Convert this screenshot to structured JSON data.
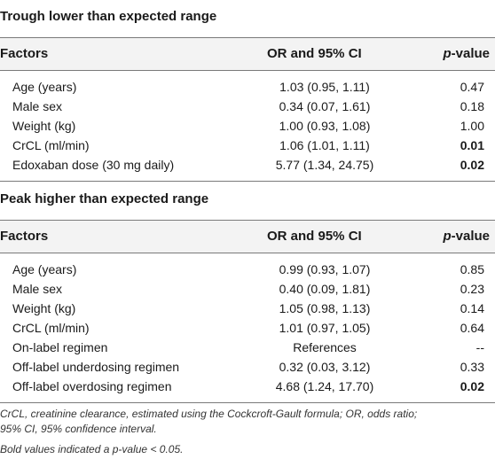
{
  "sections": [
    {
      "title": "Trough lower than expected range",
      "header": {
        "factors": "Factors",
        "or": "OR and 95% CI",
        "p_italic": "p",
        "p_rest": "-value"
      },
      "rows": [
        {
          "factor": "Age (years)",
          "or": "1.03 (0.95, 1.11)",
          "p": "0.47",
          "bold": false
        },
        {
          "factor": "Male sex",
          "or": "0.34 (0.07, 1.61)",
          "p": "0.18",
          "bold": false
        },
        {
          "factor": "Weight (kg)",
          "or": "1.00 (0.93, 1.08)",
          "p": "1.00",
          "bold": false
        },
        {
          "factor": "CrCL (ml/min)",
          "or": "1.06 (1.01, 1.11)",
          "p": "0.01",
          "bold": true
        },
        {
          "factor": "Edoxaban dose (30 mg daily)",
          "or": "5.77 (1.34, 24.75)",
          "p": "0.02",
          "bold": true
        }
      ]
    },
    {
      "title": "Peak higher than expected range",
      "header": {
        "factors": "Factors",
        "or": "OR and 95% CI",
        "p_italic": "p",
        "p_rest": "-value"
      },
      "rows": [
        {
          "factor": "Age (years)",
          "or": "0.99 (0.93, 1.07)",
          "p": "0.85",
          "bold": false
        },
        {
          "factor": "Male sex",
          "or": "0.40 (0.09, 1.81)",
          "p": "0.23",
          "bold": false
        },
        {
          "factor": "Weight (kg)",
          "or": "1.05 (0.98, 1.13)",
          "p": "0.14",
          "bold": false
        },
        {
          "factor": "CrCL (ml/min)",
          "or": "1.01 (0.97, 1.05)",
          "p": "0.64",
          "bold": false
        },
        {
          "factor": "On-label regimen",
          "or": "References",
          "p": "--",
          "bold": false
        },
        {
          "factor": "Off-label underdosing regimen",
          "or": "0.32 (0.03, 3.12)",
          "p": "0.33",
          "bold": false
        },
        {
          "factor": "Off-label overdosing regimen",
          "or": "4.68 (1.24, 17.70)",
          "p": "0.02",
          "bold": true
        }
      ]
    }
  ],
  "footnotes": {
    "line1": "CrCL, creatinine clearance, estimated using the Cockcroft-Gault formula; OR, odds ratio;",
    "line2": "95% CI, 95% confidence interval.",
    "line3": "Bold values indicated a p-value < 0.05."
  }
}
